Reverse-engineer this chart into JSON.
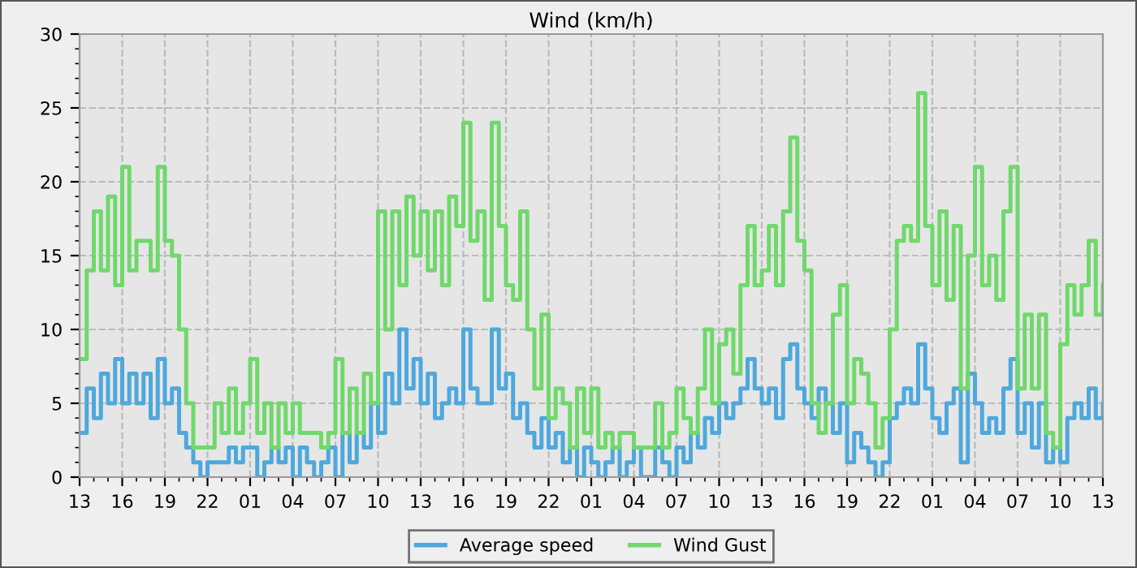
{
  "chart_data": {
    "type": "step",
    "title": "Wind (km/h)",
    "categories": [
      "13",
      null,
      null,
      null,
      null,
      null,
      "16",
      null,
      null,
      null,
      null,
      null,
      "19",
      null,
      null,
      null,
      null,
      null,
      "22",
      null,
      null,
      null,
      null,
      null,
      "01",
      null,
      null,
      null,
      null,
      null,
      "04",
      null,
      null,
      null,
      null,
      null,
      "07",
      null,
      null,
      null,
      null,
      null,
      "10",
      null,
      null,
      null,
      null,
      null,
      "13",
      null,
      null,
      null,
      null,
      null,
      "16",
      null,
      null,
      null,
      null,
      null,
      "19",
      null,
      null,
      null,
      null,
      null,
      "22",
      null,
      null,
      null,
      null,
      null,
      "01",
      null,
      null,
      null,
      null,
      null,
      "04",
      null,
      null,
      null,
      null,
      null,
      "07",
      null,
      null,
      null,
      null,
      null,
      "10",
      null,
      null,
      null,
      null,
      null,
      "13",
      null,
      null,
      null,
      null,
      null,
      "16",
      null,
      null,
      null,
      null,
      null,
      "19",
      null,
      null,
      null,
      null,
      null,
      "22",
      null,
      null,
      null,
      null,
      null,
      "01",
      null,
      null,
      null,
      null,
      null,
      "04",
      null,
      null,
      null,
      null,
      null,
      "07",
      null,
      null,
      null,
      null,
      null,
      "10",
      null,
      null,
      null,
      null,
      null,
      "13"
    ],
    "series": [
      {
        "name": "Average speed",
        "color": "#4ea8dc",
        "values": [
          3,
          6,
          4,
          7,
          5,
          8,
          5,
          7,
          5,
          7,
          4,
          8,
          5,
          6,
          3,
          2,
          1,
          0,
          1,
          1,
          1,
          2,
          1,
          2,
          2,
          0,
          1,
          2,
          1,
          2,
          0,
          2,
          1,
          0,
          1,
          2,
          0,
          3,
          1,
          3,
          2,
          5,
          3,
          7,
          5,
          10,
          6,
          8,
          5,
          7,
          4,
          5,
          6,
          5,
          10,
          6,
          5,
          5,
          10,
          6,
          7,
          4,
          5,
          3,
          2,
          4,
          2,
          3,
          1,
          2,
          0,
          2,
          1,
          0,
          1,
          2,
          0,
          1,
          2,
          0,
          0,
          2,
          1,
          0,
          2,
          1,
          3,
          2,
          4,
          3,
          5,
          4,
          5,
          6,
          8,
          6,
          5,
          6,
          4,
          8,
          9,
          6,
          5,
          4,
          6,
          5,
          3,
          5,
          1,
          3,
          2,
          1,
          0,
          1,
          4,
          5,
          6,
          5,
          9,
          6,
          4,
          3,
          5,
          6,
          1,
          7,
          5,
          3,
          4,
          3,
          6,
          8,
          3,
          5,
          2,
          5,
          1,
          2,
          1,
          4,
          5,
          4,
          6,
          4,
          5
        ]
      },
      {
        "name": "Wind Gust",
        "color": "#70d86c",
        "values": [
          8,
          14,
          18,
          14,
          19,
          13,
          21,
          14,
          16,
          16,
          14,
          21,
          16,
          15,
          10,
          5,
          2,
          2,
          2,
          5,
          3,
          6,
          3,
          5,
          8,
          3,
          5,
          2,
          5,
          3,
          5,
          3,
          3,
          3,
          2,
          3,
          8,
          3,
          6,
          3,
          7,
          5,
          18,
          10,
          18,
          13,
          19,
          15,
          18,
          14,
          18,
          13,
          19,
          17,
          24,
          16,
          18,
          12,
          24,
          17,
          13,
          12,
          18,
          10,
          6,
          11,
          4,
          6,
          5,
          2,
          6,
          3,
          6,
          2,
          3,
          2,
          3,
          3,
          2,
          2,
          2,
          5,
          2,
          3,
          6,
          4,
          3,
          6,
          10,
          5,
          9,
          10,
          7,
          13,
          17,
          13,
          14,
          17,
          13,
          18,
          23,
          16,
          14,
          5,
          3,
          5,
          11,
          13,
          5,
          8,
          7,
          5,
          2,
          4,
          10,
          16,
          17,
          16,
          26,
          17,
          13,
          18,
          12,
          17,
          6,
          15,
          21,
          13,
          15,
          12,
          18,
          21,
          6,
          11,
          6,
          11,
          3,
          2,
          9,
          13,
          11,
          13,
          16,
          11,
          13
        ]
      }
    ],
    "ylim": [
      0,
      30
    ],
    "yticks": [
      0,
      5,
      10,
      15,
      20,
      25,
      30
    ],
    "grid": true,
    "legend": "bottom",
    "line_style": "solid",
    "marker": "none"
  }
}
